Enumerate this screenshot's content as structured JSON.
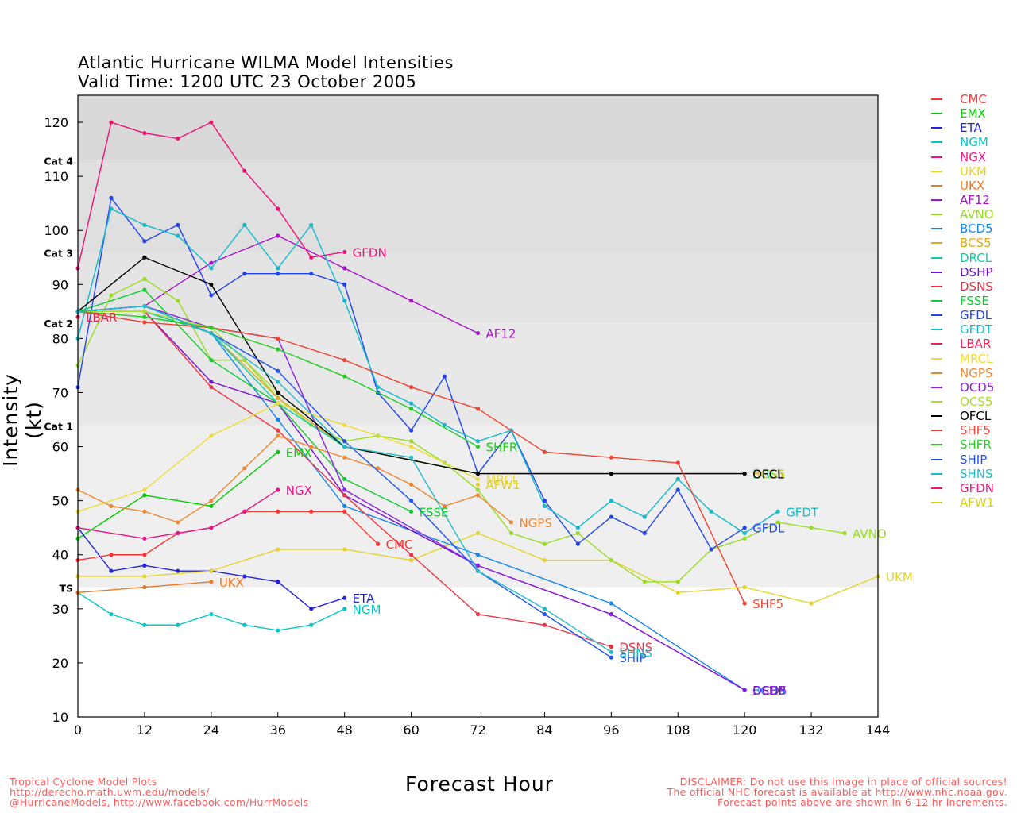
{
  "title_line1": "Atlantic Hurricane WILMA Model Intensities",
  "title_line2": "Valid Time: 1200 UTC 23 October 2005",
  "footer_left": [
    "Tropical Cyclone Model Plots",
    "http://derecho.math.uwm.edu/models/",
    "@HurricaneModels, http://www.facebook.com/HurrModels"
  ],
  "footer_right": [
    "DISCLAIMER: Do not use this image in place of official sources!",
    "The official NHC forecast is available at http://www.nhc.noaa.gov.",
    "Forecast points above are shown in 6-12 hr increments."
  ],
  "chart_data": {
    "type": "line",
    "title": "Atlantic Hurricane WILMA Model Intensities",
    "subtitle": "Valid Time: 1200 UTC 23 October 2005",
    "xlabel": "Forecast Hour",
    "ylabel": "Intensity (kt)",
    "xlim": [
      0,
      144
    ],
    "ylim": [
      10,
      125
    ],
    "xticks": [
      0,
      12,
      24,
      36,
      48,
      60,
      72,
      84,
      96,
      108,
      120,
      132,
      144
    ],
    "yticks": [
      10,
      20,
      30,
      40,
      50,
      60,
      70,
      80,
      90,
      100,
      110,
      120
    ],
    "legend_position": "right",
    "category_bands": [
      {
        "label": "TS",
        "from": 34,
        "to": 64,
        "color": "#efefef"
      },
      {
        "label": "Cat 1",
        "from": 64,
        "to": 83,
        "color": "#e8e8e8"
      },
      {
        "label": "Cat 2",
        "from": 83,
        "to": 96,
        "color": "#e4e4e4"
      },
      {
        "label": "Cat 3",
        "from": 96,
        "to": 113,
        "color": "#dfdfdf"
      },
      {
        "label": "Cat 4",
        "from": 113,
        "to": 125,
        "color": "#d9d9d9"
      }
    ],
    "series": [
      {
        "name": "CMC",
        "color": "#ff3333",
        "x": [
          0,
          6,
          12,
          18,
          24,
          30,
          36,
          42,
          48,
          54
        ],
        "y": [
          39,
          40,
          40,
          44,
          45,
          48,
          48,
          48,
          48,
          42
        ],
        "label_at": [
          54,
          42
        ]
      },
      {
        "name": "EMX",
        "color": "#00cc00",
        "x": [
          0,
          12,
          24,
          36
        ],
        "y": [
          43,
          51,
          49,
          59
        ],
        "label_at": [
          36,
          59
        ]
      },
      {
        "name": "ETA",
        "color": "#2222dd",
        "x": [
          0,
          6,
          12,
          18,
          24,
          30,
          36,
          42,
          48
        ],
        "y": [
          45,
          37,
          38,
          37,
          37,
          36,
          35,
          30,
          32
        ],
        "label_at": [
          48,
          32
        ]
      },
      {
        "name": "NGM",
        "color": "#00c8c8",
        "x": [
          0,
          6,
          12,
          18,
          24,
          30,
          36,
          42,
          48
        ],
        "y": [
          33,
          29,
          27,
          27,
          29,
          27,
          26,
          27,
          30
        ],
        "label_at": [
          48,
          30
        ]
      },
      {
        "name": "NGX",
        "color": "#ee1188",
        "x": [
          0,
          12,
          18,
          24,
          30,
          36
        ],
        "y": [
          45,
          43,
          44,
          45,
          48,
          52
        ],
        "label_at": [
          36,
          52
        ]
      },
      {
        "name": "UKM",
        "color": "#e6d22a",
        "x": [
          0,
          12,
          24,
          36,
          48,
          60,
          72,
          84,
          96,
          108,
          120,
          132,
          144
        ],
        "y": [
          36,
          36,
          37,
          41,
          41,
          39,
          44,
          39,
          39,
          33,
          34,
          31,
          36
        ],
        "label_at": [
          144,
          36
        ]
      },
      {
        "name": "UKX",
        "color": "#ee7722",
        "x": [
          0,
          12,
          24
        ],
        "y": [
          33,
          34,
          35
        ],
        "label_at": [
          24,
          35
        ]
      },
      {
        "name": "AF12",
        "color": "#aa11cc",
        "x": [
          0,
          12,
          24,
          36,
          48,
          60,
          72
        ],
        "y": [
          85,
          86,
          94,
          99,
          93,
          87,
          81
        ],
        "label_at": [
          72,
          81
        ]
      },
      {
        "name": "AVNO",
        "color": "#99dd22",
        "x": [
          0,
          6,
          12,
          18,
          24,
          30,
          36,
          42,
          48,
          54,
          60,
          66,
          72,
          78,
          84,
          90,
          96,
          102,
          108,
          114,
          120,
          126,
          132,
          138
        ],
        "y": [
          75,
          88,
          91,
          87,
          76,
          76,
          69,
          64,
          61,
          62,
          61,
          57,
          52,
          44,
          42,
          44,
          39,
          35,
          35,
          41,
          43,
          46,
          45,
          44
        ],
        "label_at": [
          138,
          44
        ]
      },
      {
        "name": "BCD5",
        "color": "#1188ee",
        "x": [
          0,
          12,
          24,
          36,
          48,
          72,
          96,
          120
        ],
        "y": [
          85,
          85,
          81,
          65,
          49,
          40,
          31,
          15
        ],
        "label_at": [
          120,
          15
        ]
      },
      {
        "name": "BCS5",
        "color": "#ddaa22",
        "x": [
          0,
          12,
          24,
          36,
          48,
          72,
          96,
          120
        ],
        "y": [
          85,
          85,
          81,
          69,
          60,
          55,
          55,
          55
        ],
        "label_at": [
          120,
          55
        ]
      },
      {
        "name": "DRCL",
        "color": "#11ccaa",
        "x": [
          0,
          12,
          24,
          36,
          48,
          72,
          96,
          120
        ],
        "y": [
          85,
          85,
          81,
          68,
          60,
          55,
          55,
          55
        ],
        "label_at": [
          120,
          55
        ]
      },
      {
        "name": "DSHP",
        "color": "#7711cc",
        "x": [
          0,
          12,
          24,
          36,
          48,
          72,
          96,
          120
        ],
        "y": [
          85,
          85,
          72,
          68,
          51,
          38,
          29,
          15
        ],
        "label_at": [
          120,
          15
        ]
      },
      {
        "name": "DSNS",
        "color": "#ee3344",
        "x": [
          0,
          12,
          24,
          36,
          48,
          60,
          72,
          84,
          96
        ],
        "y": [
          85,
          85,
          71,
          63,
          51,
          40,
          29,
          27,
          23
        ],
        "label_at": [
          96,
          23
        ]
      },
      {
        "name": "FSSE",
        "color": "#11cc33",
        "x": [
          0,
          12,
          24,
          36,
          48,
          60
        ],
        "y": [
          85,
          89,
          76,
          68,
          54,
          48
        ],
        "label_at": [
          60,
          48
        ]
      },
      {
        "name": "GFDL",
        "color": "#2244ee",
        "x": [
          0,
          6,
          12,
          18,
          24,
          30,
          36,
          42,
          48,
          54,
          60,
          66,
          72,
          78,
          84,
          90,
          96,
          102,
          108,
          114,
          120
        ],
        "y": [
          71,
          106,
          98,
          101,
          88,
          92,
          92,
          92,
          90,
          70,
          63,
          73,
          55,
          63,
          50,
          42,
          47,
          44,
          52,
          41,
          45
        ],
        "label_at": [
          120,
          45
        ]
      },
      {
        "name": "GFDT",
        "color": "#11bbcc",
        "x": [
          0,
          6,
          12,
          18,
          24,
          30,
          36,
          42,
          48,
          54,
          60,
          66,
          72,
          78,
          84,
          90,
          96,
          102,
          108,
          114,
          120,
          126
        ],
        "y": [
          80,
          104,
          101,
          99,
          93,
          101,
          93,
          101,
          87,
          71,
          68,
          64,
          61,
          63,
          49,
          45,
          50,
          47,
          54,
          48,
          44,
          48
        ],
        "label_at": [
          126,
          48
        ]
      },
      {
        "name": "LBAR",
        "color": "#ee2255",
        "x": [
          0
        ],
        "y": [
          84
        ],
        "label_at": [
          0,
          84
        ]
      },
      {
        "name": "MRCL",
        "color": "#eedd33",
        "x": [
          0,
          12,
          24,
          36,
          48,
          60,
          72
        ],
        "y": [
          48,
          52,
          62,
          68,
          64,
          60,
          54
        ],
        "label_at": [
          72,
          54
        ]
      },
      {
        "name": "NGPS",
        "color": "#ee8833",
        "x": [
          0,
          6,
          12,
          18,
          24,
          30,
          36,
          42,
          48,
          54,
          60,
          66,
          72,
          78
        ],
        "y": [
          52,
          49,
          48,
          46,
          50,
          56,
          62,
          60,
          58,
          56,
          53,
          49,
          51,
          46
        ],
        "label_at": [
          78,
          46
        ]
      },
      {
        "name": "OCD5",
        "color": "#8822dd",
        "x": [
          0,
          12,
          24,
          36,
          48,
          72,
          96,
          120
        ],
        "y": [
          85,
          86,
          82,
          80,
          52,
          38,
          29,
          15
        ],
        "label_at": [
          120,
          15
        ]
      },
      {
        "name": "OCS5",
        "color": "#aadd33",
        "x": [
          0,
          12,
          24,
          36,
          48,
          72,
          96,
          120
        ],
        "y": [
          85,
          85,
          82,
          70,
          60,
          55,
          55,
          55
        ],
        "label_at": [
          120,
          55
        ]
      },
      {
        "name": "OFCL",
        "color": "#000000",
        "x": [
          0,
          12,
          24,
          36,
          48,
          72,
          96,
          120
        ],
        "y": [
          85,
          95,
          90,
          70,
          60,
          55,
          55,
          55
        ],
        "label_at": [
          120,
          55
        ]
      },
      {
        "name": "SHF5",
        "color": "#ee4433",
        "x": [
          0,
          12,
          24,
          36,
          48,
          60,
          72,
          84,
          96,
          108,
          120
        ],
        "y": [
          85,
          83,
          82,
          80,
          76,
          71,
          67,
          59,
          58,
          57,
          31
        ],
        "label_at": [
          120,
          31
        ]
      },
      {
        "name": "SHFR",
        "color": "#22cc22",
        "x": [
          0,
          12,
          24,
          36,
          48,
          60,
          72
        ],
        "y": [
          85,
          84,
          82,
          78,
          73,
          67,
          60
        ],
        "label_at": [
          72,
          60
        ]
      },
      {
        "name": "SHIP",
        "color": "#2255ee",
        "x": [
          0,
          12,
          24,
          36,
          48,
          60,
          72,
          84,
          96
        ],
        "y": [
          85,
          86,
          81,
          74,
          61,
          50,
          37,
          29,
          21
        ],
        "label_at": [
          96,
          21
        ]
      },
      {
        "name": "SHNS",
        "color": "#22bbcc",
        "x": [
          0,
          12,
          24,
          36,
          48,
          60,
          72,
          84,
          96
        ],
        "y": [
          85,
          86,
          81,
          72,
          60,
          58,
          37,
          30,
          22
        ],
        "label_at": [
          96,
          22
        ]
      },
      {
        "name": "GFDN",
        "color": "#ee1177",
        "x": [
          0,
          6,
          12,
          18,
          24,
          30,
          36,
          42,
          48
        ],
        "y": [
          93,
          120,
          118,
          117,
          120,
          111,
          104,
          95,
          96
        ],
        "label_at": [
          48,
          96
        ]
      },
      {
        "name": "AFW1",
        "color": "#ddcc22",
        "x": [
          72
        ],
        "y": [
          53
        ],
        "label_at": [
          72,
          53
        ]
      }
    ]
  }
}
